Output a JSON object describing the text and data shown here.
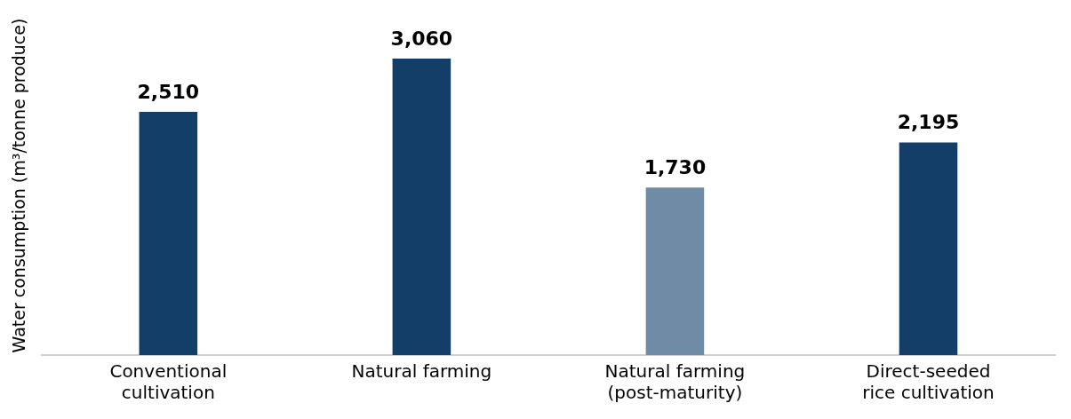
{
  "chart_data": {
    "type": "bar",
    "ylabel": "Water consumption (m³/tonne produce)",
    "categories": [
      "Conventional cultivation",
      "Natural farming",
      "Natural farming (post-maturity)",
      "Direct-seeded rice cultivation"
    ],
    "values": [
      2510,
      3060,
      1730,
      2195
    ],
    "colors": [
      "#123e68",
      "#123e68",
      "#6f8ba5",
      "#123e68"
    ],
    "value_labels": [
      "2,510",
      "3,060",
      "1,730",
      "2,195"
    ]
  }
}
